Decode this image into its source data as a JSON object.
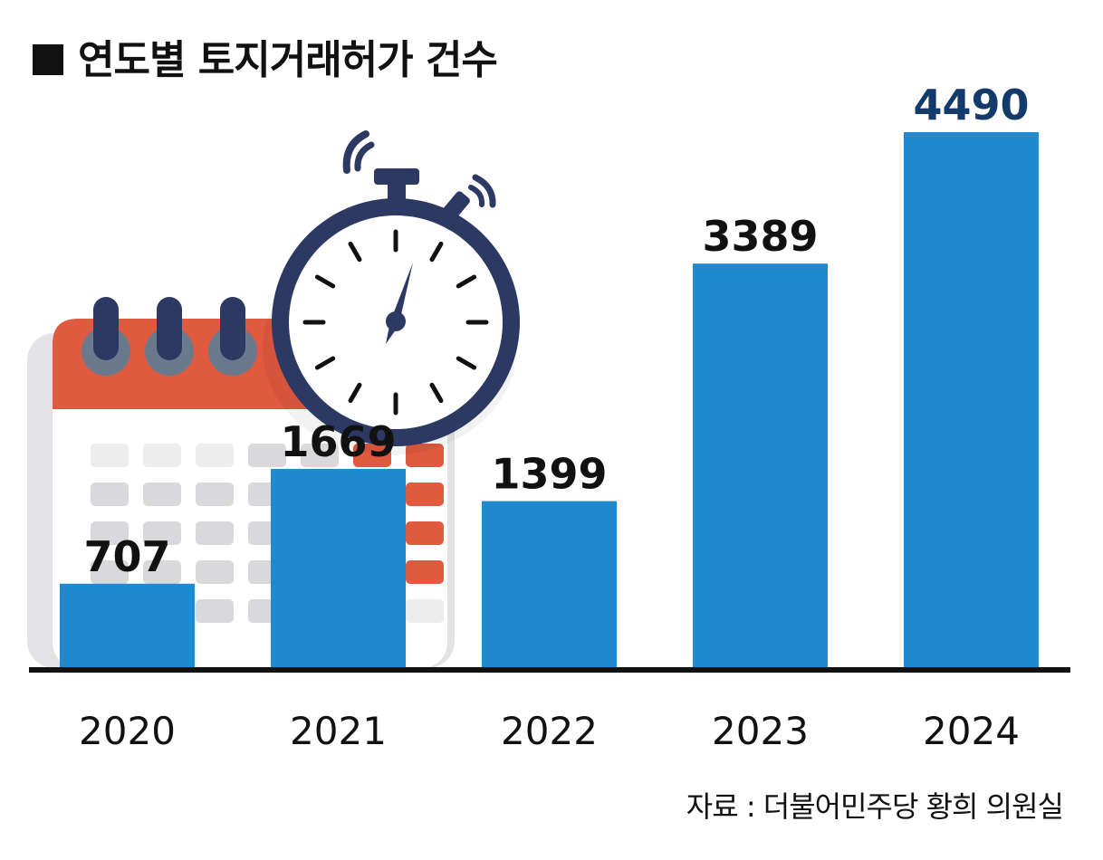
{
  "title": "연도별 토지거래허가 건수",
  "source": "자료 : 더불어민주당 황희 의원실",
  "colors": {
    "bar": "#1f8ad0",
    "highlight_label": "#123b6b",
    "label": "#111111",
    "axis": "#111111",
    "calendar_red": "#e05a3f",
    "calendar_gray": "#d9d9dc",
    "ring_navy": "#2c3a63",
    "ring_hole": "#6a7a8c",
    "stopwatch_navy": "#2c3a63"
  },
  "icons": [
    "calendar-icon",
    "stopwatch-icon"
  ],
  "chart_data": {
    "type": "bar",
    "categories": [
      "2020",
      "2021",
      "2022",
      "2023",
      "2024"
    ],
    "values": [
      707,
      1669,
      1399,
      3389,
      4490
    ],
    "title": "연도별 토지거래허가 건수",
    "xlabel": "",
    "ylabel": "",
    "ylim": [
      0,
      4800
    ],
    "grid": false,
    "legend": "none",
    "highlight_index": 4
  }
}
